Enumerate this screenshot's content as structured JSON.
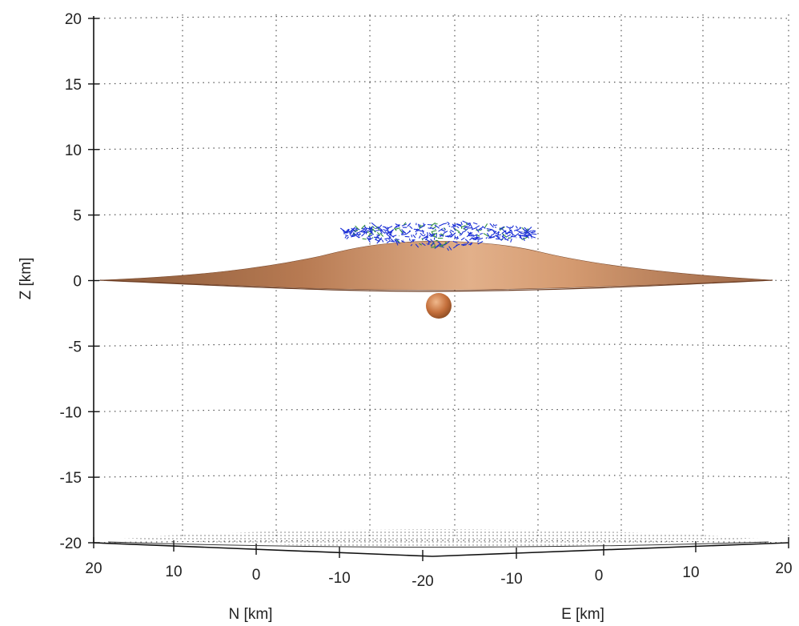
{
  "chart_data": {
    "type": "surface3d",
    "ylabel": "Z [km]",
    "x_axis_label_n": "N [km]",
    "x_axis_label_e": "E [km]",
    "z_ticks": [
      20,
      15,
      10,
      5,
      0,
      -5,
      -10,
      -15,
      -20
    ],
    "zlim": [
      -20,
      20
    ],
    "n_ticks": [
      "20",
      "10",
      "0",
      "-10",
      "-20"
    ],
    "e_ticks": [
      "-10",
      "0",
      "10",
      "20"
    ],
    "grid": true,
    "series": [
      {
        "kind": "volcano-surface",
        "color": "#c98a5c",
        "profile_x_km": [
          -20,
          -15,
          -10,
          -5,
          0,
          5,
          10,
          15,
          20
        ],
        "profile_z_km": [
          0,
          0.1,
          0.4,
          1.6,
          2.5,
          1.6,
          0.4,
          0.1,
          0
        ]
      },
      {
        "kind": "mesh-vectors-on-summit",
        "color": "#1a2fd6",
        "z_range_km": [
          2.3,
          4.0
        ]
      },
      {
        "kind": "source-sphere",
        "color": "#c46f3b",
        "center_z_km": -2.0
      },
      {
        "kind": "floor-points",
        "color": "#444444",
        "z_km": -20
      }
    ]
  }
}
